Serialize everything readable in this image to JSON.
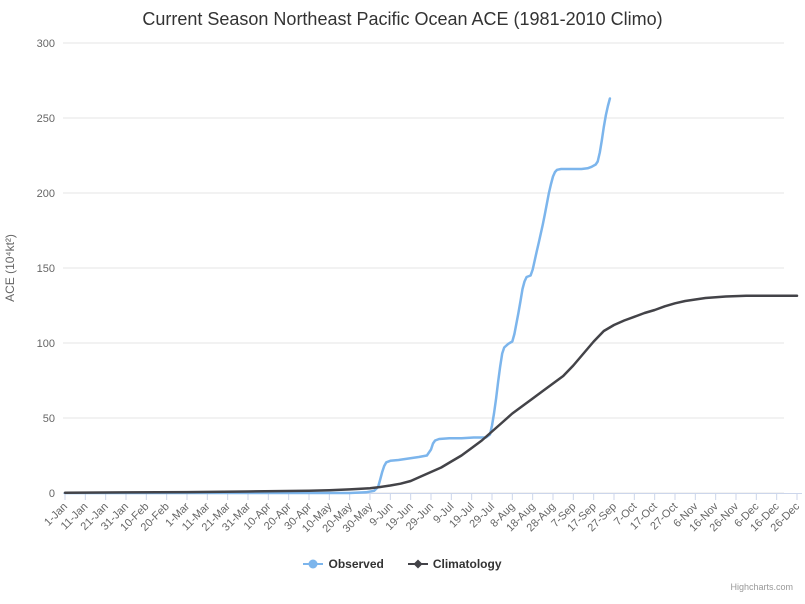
{
  "credit": "Highcharts.com",
  "chart_data": {
    "type": "line",
    "title": "Current Season Northeast Pacific Ocean ACE (1981-2010 Climo)",
    "xlabel": "",
    "ylabel": "ACE (10⁴kt²)",
    "ylim": [
      0,
      300
    ],
    "yticks": [
      0,
      50,
      100,
      150,
      200,
      250,
      300
    ],
    "x_unit": "day of year (ticks every 10 days)",
    "x_range_days": [
      1,
      366
    ],
    "grid": true,
    "legend_position": "bottom",
    "colors": {
      "grid": "#e6e6e6",
      "axis": "#ccd6eb",
      "labels": "#666666",
      "title": "#333333",
      "legend_text": "#333333",
      "credit": "#999999",
      "background": "#ffffff"
    },
    "xtick_labels": [
      "1-Jan",
      "11-Jan",
      "21-Jan",
      "31-Jan",
      "10-Feb",
      "20-Feb",
      "1-Mar",
      "11-Mar",
      "21-Mar",
      "31-Mar",
      "10-Apr",
      "20-Apr",
      "30-Apr",
      "10-May",
      "20-May",
      "30-May",
      "9-Jun",
      "19-Jun",
      "29-Jun",
      "9-Jul",
      "19-Jul",
      "29-Jul",
      "8-Aug",
      "18-Aug",
      "28-Aug",
      "7-Sep",
      "17-Sep",
      "27-Sep",
      "7-Oct",
      "17-Oct",
      "27-Oct",
      "6-Nov",
      "16-Nov",
      "26-Nov",
      "6-Dec",
      "16-Dec",
      "26-Dec"
    ],
    "series": [
      {
        "name": "Observed",
        "color": "#7cb5ec",
        "marker": "circle",
        "points": [
          [
            1,
            0
          ],
          [
            31,
            0
          ],
          [
            61,
            0
          ],
          [
            91,
            0
          ],
          [
            121,
            0
          ],
          [
            141,
            0
          ],
          [
            149,
            0.5
          ],
          [
            153,
            1.5
          ],
          [
            155,
            4
          ],
          [
            156,
            9
          ],
          [
            157,
            14
          ],
          [
            158,
            18
          ],
          [
            159,
            20.5
          ],
          [
            161,
            21.5
          ],
          [
            165,
            22
          ],
          [
            170,
            23
          ],
          [
            175,
            24
          ],
          [
            179,
            25
          ],
          [
            181,
            29
          ],
          [
            182,
            33
          ],
          [
            183,
            35
          ],
          [
            185,
            36
          ],
          [
            190,
            36.5
          ],
          [
            196,
            36.5
          ],
          [
            202,
            37
          ],
          [
            208,
            37
          ],
          [
            210,
            39
          ],
          [
            211,
            45
          ],
          [
            212,
            53
          ],
          [
            213,
            63
          ],
          [
            214,
            74
          ],
          [
            215,
            84
          ],
          [
            216,
            93
          ],
          [
            217,
            97
          ],
          [
            219,
            99.5
          ],
          [
            221,
            101
          ],
          [
            222,
            106
          ],
          [
            223,
            113
          ],
          [
            224,
            120
          ],
          [
            225,
            128
          ],
          [
            226,
            136
          ],
          [
            227,
            141
          ],
          [
            228,
            144
          ],
          [
            230,
            145
          ],
          [
            231,
            149
          ],
          [
            232,
            155
          ],
          [
            233,
            161
          ],
          [
            234,
            167
          ],
          [
            235,
            173
          ],
          [
            236,
            179
          ],
          [
            237,
            186
          ],
          [
            238,
            193
          ],
          [
            239,
            200
          ],
          [
            240,
            206
          ],
          [
            241,
            211
          ],
          [
            242,
            214
          ],
          [
            243,
            215.5
          ],
          [
            245,
            216
          ],
          [
            250,
            216
          ],
          [
            255,
            216
          ],
          [
            258,
            216.5
          ],
          [
            260,
            217.5
          ],
          [
            262,
            219
          ],
          [
            263,
            221
          ],
          [
            264,
            227
          ],
          [
            265,
            235
          ],
          [
            266,
            244
          ],
          [
            267,
            252
          ],
          [
            268,
            258
          ],
          [
            269,
            263
          ]
        ]
      },
      {
        "name": "Climatology",
        "color": "#434348",
        "marker": "diamond",
        "points": [
          [
            1,
            0.2
          ],
          [
            31,
            0.4
          ],
          [
            61,
            0.6
          ],
          [
            91,
            1
          ],
          [
            121,
            1.5
          ],
          [
            131,
            1.8
          ],
          [
            141,
            2.4
          ],
          [
            151,
            3.2
          ],
          [
            156,
            4
          ],
          [
            161,
            5
          ],
          [
            166,
            6.2
          ],
          [
            171,
            8
          ],
          [
            176,
            11
          ],
          [
            181,
            14
          ],
          [
            186,
            17
          ],
          [
            191,
            21
          ],
          [
            196,
            25
          ],
          [
            201,
            30
          ],
          [
            206,
            35
          ],
          [
            211,
            41
          ],
          [
            216,
            47
          ],
          [
            221,
            53
          ],
          [
            226,
            58
          ],
          [
            231,
            63
          ],
          [
            236,
            68
          ],
          [
            241,
            73
          ],
          [
            246,
            78
          ],
          [
            251,
            85
          ],
          [
            256,
            93
          ],
          [
            261,
            101
          ],
          [
            266,
            108
          ],
          [
            271,
            112
          ],
          [
            276,
            115
          ],
          [
            281,
            117.5
          ],
          [
            286,
            120
          ],
          [
            291,
            122
          ],
          [
            296,
            124.5
          ],
          [
            301,
            126.5
          ],
          [
            306,
            128
          ],
          [
            311,
            129
          ],
          [
            316,
            130
          ],
          [
            321,
            130.5
          ],
          [
            326,
            131
          ],
          [
            336,
            131.5
          ],
          [
            346,
            131.5
          ],
          [
            356,
            131.5
          ],
          [
            361,
            131.5
          ]
        ]
      }
    ]
  }
}
